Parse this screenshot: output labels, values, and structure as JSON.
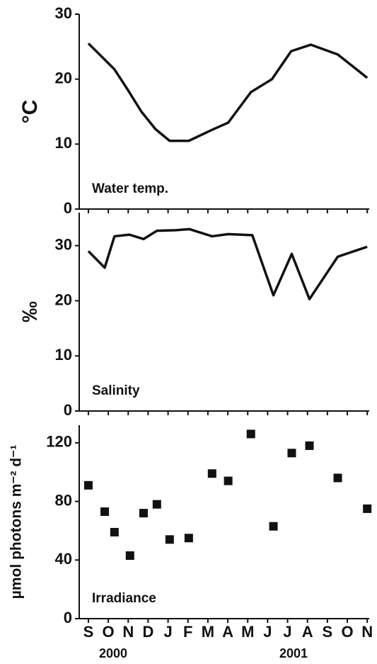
{
  "chart_data": [
    {
      "type": "line",
      "y_label": "°C",
      "panel_label": "Water temp.",
      "x": [
        0,
        0.82,
        1.31,
        1.95,
        2.66,
        3.37,
        4.08,
        5.04,
        6.21,
        7.02,
        8.16,
        9.22,
        10.18,
        11.17,
        12.52,
        14.0
      ],
      "series": [
        {
          "name": "Water temp.",
          "color": "#111111",
          "values": [
            25.5,
            23,
            21.5,
            18.5,
            15,
            12.3,
            10.5,
            10.5,
            12.2,
            13.3,
            18,
            20,
            24.3,
            25.3,
            23.8,
            20.2
          ]
        }
      ],
      "xlim": [
        -0.46,
        14.1
      ],
      "xticks": [
        0,
        1,
        2,
        3,
        4,
        5,
        6,
        7,
        8,
        9,
        10,
        11,
        12,
        13,
        14
      ],
      "ylim": [
        0,
        30
      ],
      "yticks": [
        0,
        10,
        20,
        30
      ]
    },
    {
      "type": "line",
      "y_label": "‰",
      "panel_label": "Salinity",
      "x": [
        0,
        0.82,
        1.31,
        2.06,
        2.77,
        3.44,
        4.36,
        5.07,
        6.21,
        7.02,
        8.23,
        9.29,
        10.21,
        11.1,
        12.52,
        14.0
      ],
      "series": [
        {
          "name": "Salinity",
          "color": "#111111",
          "values": [
            29,
            26,
            31.7,
            32,
            31.2,
            32.7,
            32.8,
            33,
            31.7,
            32.1,
            31.9,
            21,
            28.5,
            20.3,
            28,
            29.8
          ]
        }
      ],
      "xlim": [
        -0.46,
        14.1
      ],
      "xticks": [
        0,
        1,
        2,
        3,
        4,
        5,
        6,
        7,
        8,
        9,
        10,
        11,
        12,
        13,
        14
      ],
      "ylim": [
        0,
        36
      ],
      "yticks": [
        0,
        10,
        20,
        30
      ]
    },
    {
      "type": "scatter",
      "y_label": "µmol photons m⁻² d⁻¹",
      "panel_label": "Irradiance",
      "x": [
        0,
        0.82,
        1.31,
        2.09,
        2.77,
        3.44,
        4.08,
        5.04,
        6.21,
        7.02,
        8.16,
        9.29,
        10.21,
        11.1,
        12.52,
        14.0
      ],
      "series": [
        {
          "name": "Irradiance",
          "color": "#111111",
          "values": [
            91,
            73,
            59,
            43,
            72,
            78,
            54,
            55,
            99,
            94,
            126,
            63,
            113,
            118,
            96,
            75
          ]
        }
      ],
      "xlim": [
        -0.46,
        14.1
      ],
      "xticks": [
        {
          "value": 0,
          "label": "S"
        },
        {
          "value": 1,
          "label": "O"
        },
        {
          "value": 2,
          "label": "N"
        },
        {
          "value": 3,
          "label": "D"
        },
        {
          "value": 4,
          "label": "J"
        },
        {
          "value": 5,
          "label": "F"
        },
        {
          "value": 6,
          "label": "M"
        },
        {
          "value": 7,
          "label": "A"
        },
        {
          "value": 8,
          "label": "M"
        },
        {
          "value": 9,
          "label": "J"
        },
        {
          "value": 10,
          "label": "J"
        },
        {
          "value": 11,
          "label": "A"
        },
        {
          "value": 12,
          "label": "S"
        },
        {
          "value": 13,
          "label": "O"
        },
        {
          "value": 14,
          "label": "N"
        }
      ],
      "year_labels": [
        "2000",
        "2001"
      ],
      "ylim": [
        0,
        132
      ],
      "yticks": [
        0,
        40,
        80,
        120
      ]
    }
  ]
}
